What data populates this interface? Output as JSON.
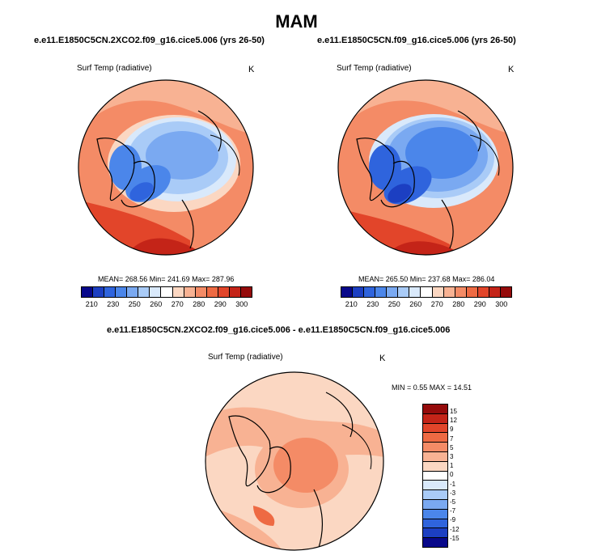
{
  "title": "MAM",
  "panels": {
    "top_left": {
      "title": "e.e11.E1850C5CN.2XCO2.f09_g16.cice5.006 (yrs 26-50)",
      "variable": "Surf Temp (radiative)",
      "units": "K",
      "stats": "MEAN= 268.56  Min= 241.69  Max= 287.96"
    },
    "top_right": {
      "title": "e.e11.E1850C5CN.f09_g16.cice5.006 (yrs 26-50)",
      "variable": "Surf Temp (radiative)",
      "units": "K",
      "stats": "MEAN= 265.50  Min= 237.68  Max= 286.04"
    },
    "diff": {
      "title": "e.e11.E1850C5CN.2XCO2.f09_g16.cice5.006 - e.e11.E1850C5CN.f09_g16.cice5.006",
      "variable": "Surf Temp (radiative)",
      "units": "K",
      "stats": "MIN =   0.55 MAX =  14.51"
    }
  },
  "abs_colorbar": {
    "colors": [
      "#08088a",
      "#1c3fc2",
      "#2f64dd",
      "#4b86ea",
      "#7aa9f1",
      "#a9cbf7",
      "#d9e9fb",
      "#ffffff",
      "#fbd7c2",
      "#f8b293",
      "#f48b66",
      "#ee6a43",
      "#e2452a",
      "#c42418",
      "#950b0b"
    ],
    "ticks": [
      "210",
      "230",
      "250",
      "260",
      "270",
      "280",
      "290",
      "300"
    ]
  },
  "diff_colorbar": {
    "colors": [
      "#950b0b",
      "#c42418",
      "#e2452a",
      "#ee6a43",
      "#f48b66",
      "#f8b293",
      "#fbd7c2",
      "#ffffff",
      "#d9e9fb",
      "#a9cbf7",
      "#7aa9f1",
      "#4b86ea",
      "#2f64dd",
      "#1c3fc2",
      "#08088a"
    ],
    "ticks": [
      "15",
      "12",
      "9",
      "7",
      "5",
      "3",
      "1",
      "0",
      "-1",
      "-3",
      "-5",
      "-7",
      "-9",
      "-12",
      "-15"
    ]
  }
}
